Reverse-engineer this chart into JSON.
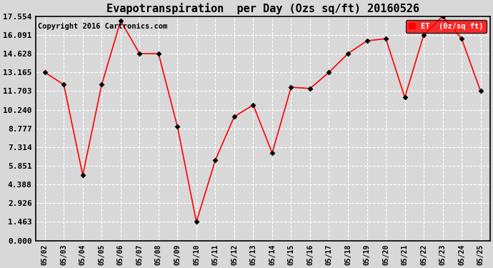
{
  "title": "Evapotranspiration  per Day (Ozs sq/ft) 20160526",
  "copyright": "Copyright 2016 Cartronics.com",
  "legend_label": "ET  (0z/sq ft)",
  "dates": [
    "05/02",
    "05/03",
    "05/04",
    "05/05",
    "05/06",
    "05/07",
    "05/08",
    "05/09",
    "05/10",
    "05/11",
    "05/12",
    "05/13",
    "05/14",
    "05/15",
    "05/16",
    "05/17",
    "05/18",
    "05/19",
    "05/20",
    "05/21",
    "05/22",
    "05/23",
    "05/24",
    "05/25"
  ],
  "values": [
    13.165,
    12.2,
    5.12,
    12.2,
    17.2,
    14.628,
    14.628,
    8.9,
    1.463,
    6.3,
    9.703,
    10.607,
    6.85,
    12.0,
    11.9,
    13.165,
    14.628,
    15.628,
    15.8,
    11.2,
    16.091,
    17.554,
    15.8,
    11.703
  ],
  "yticks": [
    0.0,
    1.463,
    2.926,
    4.388,
    5.851,
    7.314,
    8.777,
    10.24,
    11.703,
    13.165,
    14.628,
    16.091,
    17.554
  ],
  "ymax": 17.554,
  "ymin": 0.0,
  "line_color": "red",
  "marker_color": "black",
  "bg_color": "#d8d8d8",
  "grid_color": "white",
  "legend_bg": "red",
  "legend_fg": "white",
  "title_fontsize": 11,
  "copyright_fontsize": 7.5,
  "tick_fontsize": 8,
  "xtick_fontsize": 7
}
